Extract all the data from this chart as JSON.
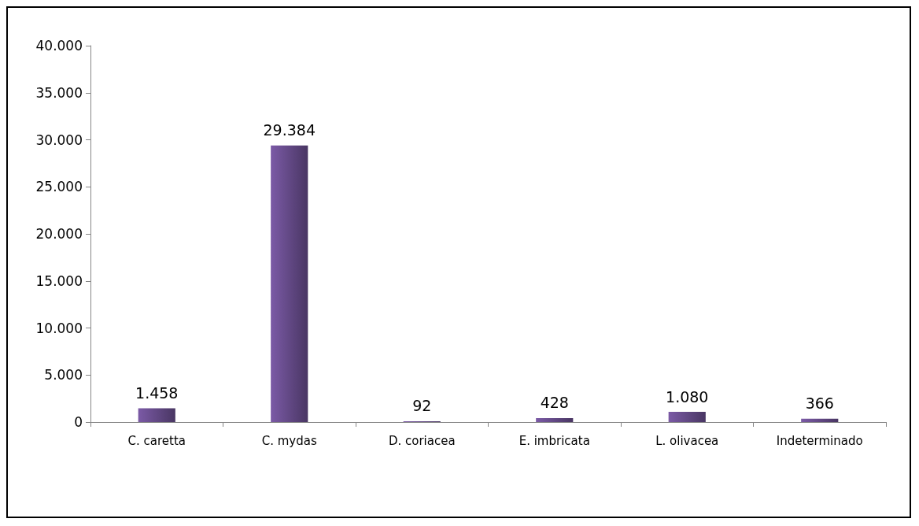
{
  "chart_data": {
    "type": "bar",
    "categories": [
      "C. caretta",
      "C. mydas",
      "D. coriacea",
      "E. imbricata",
      "L. olivacea",
      "Indeterminado"
    ],
    "values": [
      1458,
      29384,
      92,
      428,
      1080,
      366
    ],
    "value_labels": [
      "1.458",
      "29.384",
      "92",
      "428",
      "1.080",
      "366"
    ],
    "color": "#7b5aa6",
    "ylim": [
      0,
      40000
    ],
    "yticks": [
      0,
      {
        "value": 5000,
        "label": "5.000"
      },
      {
        "value": 10000,
        "label": "10.000"
      },
      {
        "value": 15000,
        "label": "15.000"
      },
      {
        "value": 20000,
        "label": "20.000"
      },
      {
        "value": 25000,
        "label": "25.000"
      },
      {
        "value": 30000,
        "label": "30.000"
      },
      {
        "value": 35000,
        "label": "35.000"
      },
      {
        "value": 40000,
        "label": "40.000"
      }
    ],
    "grid": false
  }
}
